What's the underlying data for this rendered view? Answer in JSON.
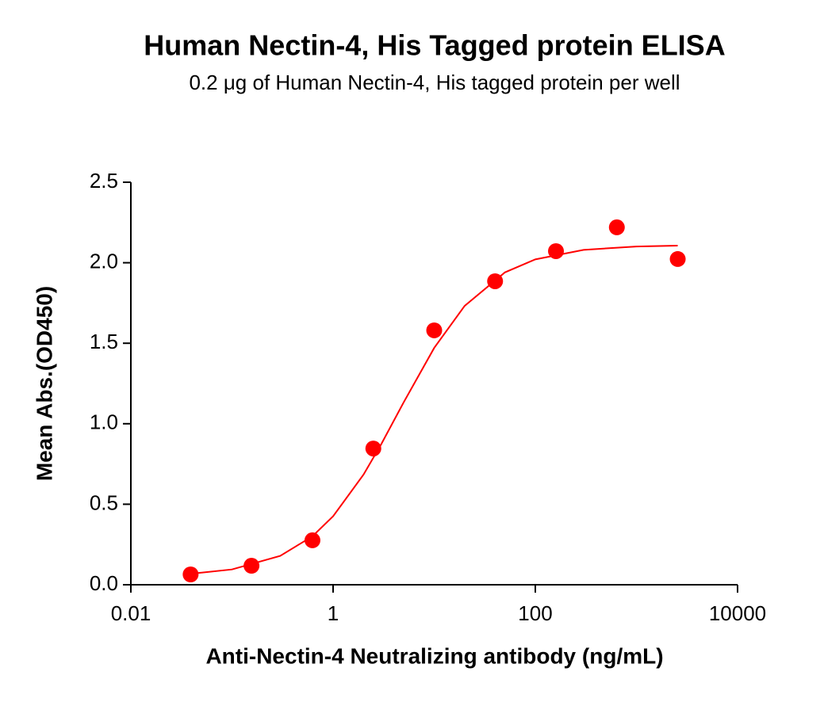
{
  "chart_data": {
    "type": "scatter",
    "title": "Human Nectin-4, His Tagged protein ELISA",
    "subtitle": "0.2 μg of Human Nectin-4, His tagged protein per well",
    "xlabel": "Anti-Nectin-4 Neutralizing antibody (ng/mL)",
    "ylabel": "Mean Abs.(OD450)",
    "xscale": "log",
    "xlim": [
      0.01,
      10000
    ],
    "ylim": [
      0,
      2.5
    ],
    "xticks": [
      0.01,
      1,
      100,
      10000
    ],
    "yticks": [
      {
        "value": 0,
        "label": "0.0"
      },
      0.5,
      {
        "value": 1,
        "label": "1.0"
      },
      1.5,
      {
        "value": 2,
        "label": "2.0"
      },
      2.5
    ],
    "series": [
      {
        "mode": "markers",
        "color": "#ff0000",
        "x": [
          0.039,
          0.156,
          0.625,
          2.5,
          10,
          40,
          160,
          640,
          2560
        ],
        "values": [
          0.064,
          0.118,
          0.276,
          0.846,
          1.58,
          1.885,
          2.072,
          2.22,
          2.023
        ]
      },
      {
        "mode": "line",
        "color": "#ff0000",
        "x": [
          0.039,
          0.1,
          0.3,
          0.625,
          1,
          2,
          3,
          5,
          10,
          20,
          50,
          100,
          300,
          1000,
          2560
        ],
        "values": [
          0.068,
          0.095,
          0.179,
          0.301,
          0.425,
          0.684,
          0.874,
          1.134,
          1.471,
          1.732,
          1.94,
          2.021,
          2.08,
          2.101,
          2.106
        ]
      }
    ]
  }
}
